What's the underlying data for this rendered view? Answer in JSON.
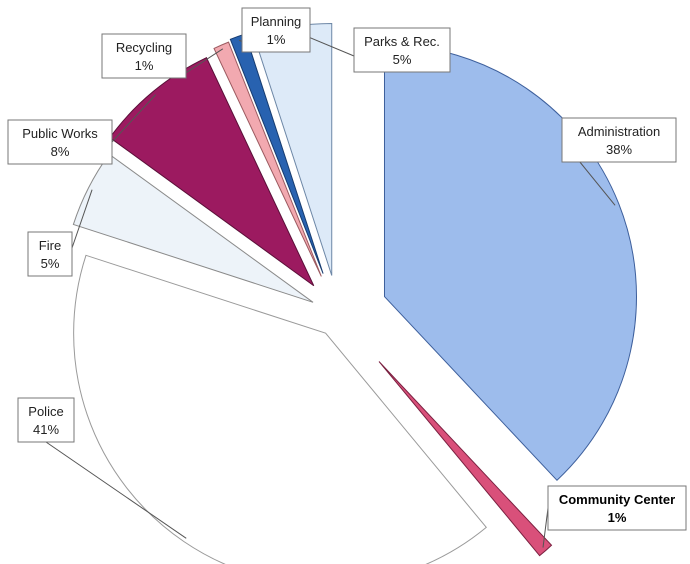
{
  "chart_data": {
    "type": "pie",
    "title": "",
    "exploded": true,
    "slices": [
      {
        "name": "Administration",
        "value": 38,
        "pct_label": "38%",
        "color": "#9dbcec",
        "stroke": "#3d5f9c"
      },
      {
        "name": "Community Center",
        "value": 1,
        "pct_label": "1%",
        "color": "#d9507a",
        "stroke": "#7a2040"
      },
      {
        "name": "Police",
        "value": 41,
        "pct_label": "41%",
        "color": "#ffffff",
        "stroke": "#9a9a9a"
      },
      {
        "name": "Fire",
        "value": 5,
        "pct_label": "5%",
        "color": "#edf3f9",
        "stroke": "#8a8a8a"
      },
      {
        "name": "Public Works",
        "value": 8,
        "pct_label": "8%",
        "color": "#9c1a60",
        "stroke": "#5a0f38"
      },
      {
        "name": "Recycling",
        "value": 1,
        "pct_label": "1%",
        "color": "#f2a9b0",
        "stroke": "#9c5a60"
      },
      {
        "name": "Planning",
        "value": 1,
        "pct_label": "1%",
        "color": "#2862b0",
        "stroke": "#173c70"
      },
      {
        "name": "Parks & Rec.",
        "value": 5,
        "pct_label": "5%",
        "color": "#ddeaf8",
        "stroke": "#6d87a6"
      }
    ]
  }
}
